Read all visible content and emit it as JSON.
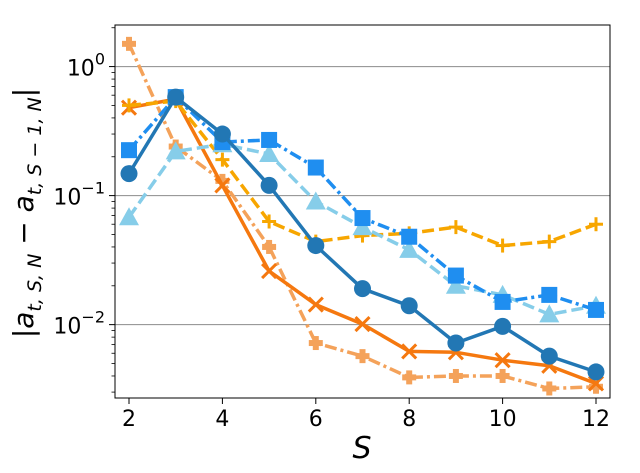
{
  "chart_data": {
    "type": "line",
    "title": "",
    "xlabel": "S",
    "ylabel_html": "|a<sub>t,S,N</sub> − a<sub>t,S−1,N</sub>|",
    "ylabel_parts": {
      "bar_open": "|",
      "a1": "a",
      "sub1": "t, S, N",
      "minus": " − ",
      "a2": "a",
      "sub2": "t, S − 1, N",
      "bar_close": "|"
    },
    "xscale": "linear",
    "yscale": "log",
    "xlim": [
      1.7,
      12.3
    ],
    "ylim": [
      0.0027,
      2.1
    ],
    "xticks": [
      2,
      4,
      6,
      8,
      10,
      12
    ],
    "xtick_labels": [
      "2",
      "4",
      "6",
      "8",
      "10",
      "12"
    ],
    "yticks": [
      0.01,
      0.1,
      1
    ],
    "ytick_labels": [
      {
        "base": "10",
        "exp": "−2"
      },
      {
        "base": "10",
        "exp": "−1"
      },
      {
        "base": "10",
        "exp": "0"
      }
    ],
    "grid": "horizontal major",
    "x": [
      2,
      3,
      4,
      5,
      6,
      7,
      8,
      9,
      10,
      11,
      12
    ],
    "series": [
      {
        "name": "series-light-orange-plus",
        "color": "#f4a25a",
        "linestyle": "dashdot",
        "marker": "thick-plus",
        "values": [
          1.5,
          0.24,
          0.13,
          0.04,
          0.0072,
          0.0057,
          0.0039,
          0.004,
          0.004,
          0.0032,
          0.0033
        ]
      },
      {
        "name": "series-orange-x",
        "color": "#f5780f",
        "linestyle": "solid",
        "marker": "x",
        "values": [
          0.48,
          0.56,
          0.12,
          0.026,
          0.0143,
          0.0101,
          0.0062,
          0.0061,
          0.0053,
          0.0048,
          0.0035
        ]
      },
      {
        "name": "series-gold-plus",
        "color": "#f7a600",
        "linestyle": "dashed",
        "marker": "plus",
        "values": [
          0.5,
          0.54,
          0.19,
          0.063,
          0.044,
          0.049,
          0.051,
          0.057,
          0.041,
          0.044,
          0.06
        ]
      },
      {
        "name": "series-skyblue-triangle",
        "color": "#86cde9",
        "linestyle": "dashed",
        "marker": "triangle",
        "values": [
          0.068,
          0.22,
          0.25,
          0.21,
          0.09,
          0.057,
          0.038,
          0.02,
          0.017,
          0.012,
          0.014
        ]
      },
      {
        "name": "series-blue-square",
        "color": "#1f8ef0",
        "linestyle": "dashdot",
        "marker": "square",
        "values": [
          0.225,
          0.58,
          0.26,
          0.27,
          0.165,
          0.067,
          0.048,
          0.024,
          0.015,
          0.017,
          0.013
        ]
      },
      {
        "name": "series-steelblue-circle",
        "color": "#2277b4",
        "linestyle": "solid",
        "marker": "circle",
        "values": [
          0.148,
          0.58,
          0.3,
          0.12,
          0.041,
          0.019,
          0.014,
          0.0072,
          0.0097,
          0.0057,
          0.0043
        ]
      }
    ]
  }
}
